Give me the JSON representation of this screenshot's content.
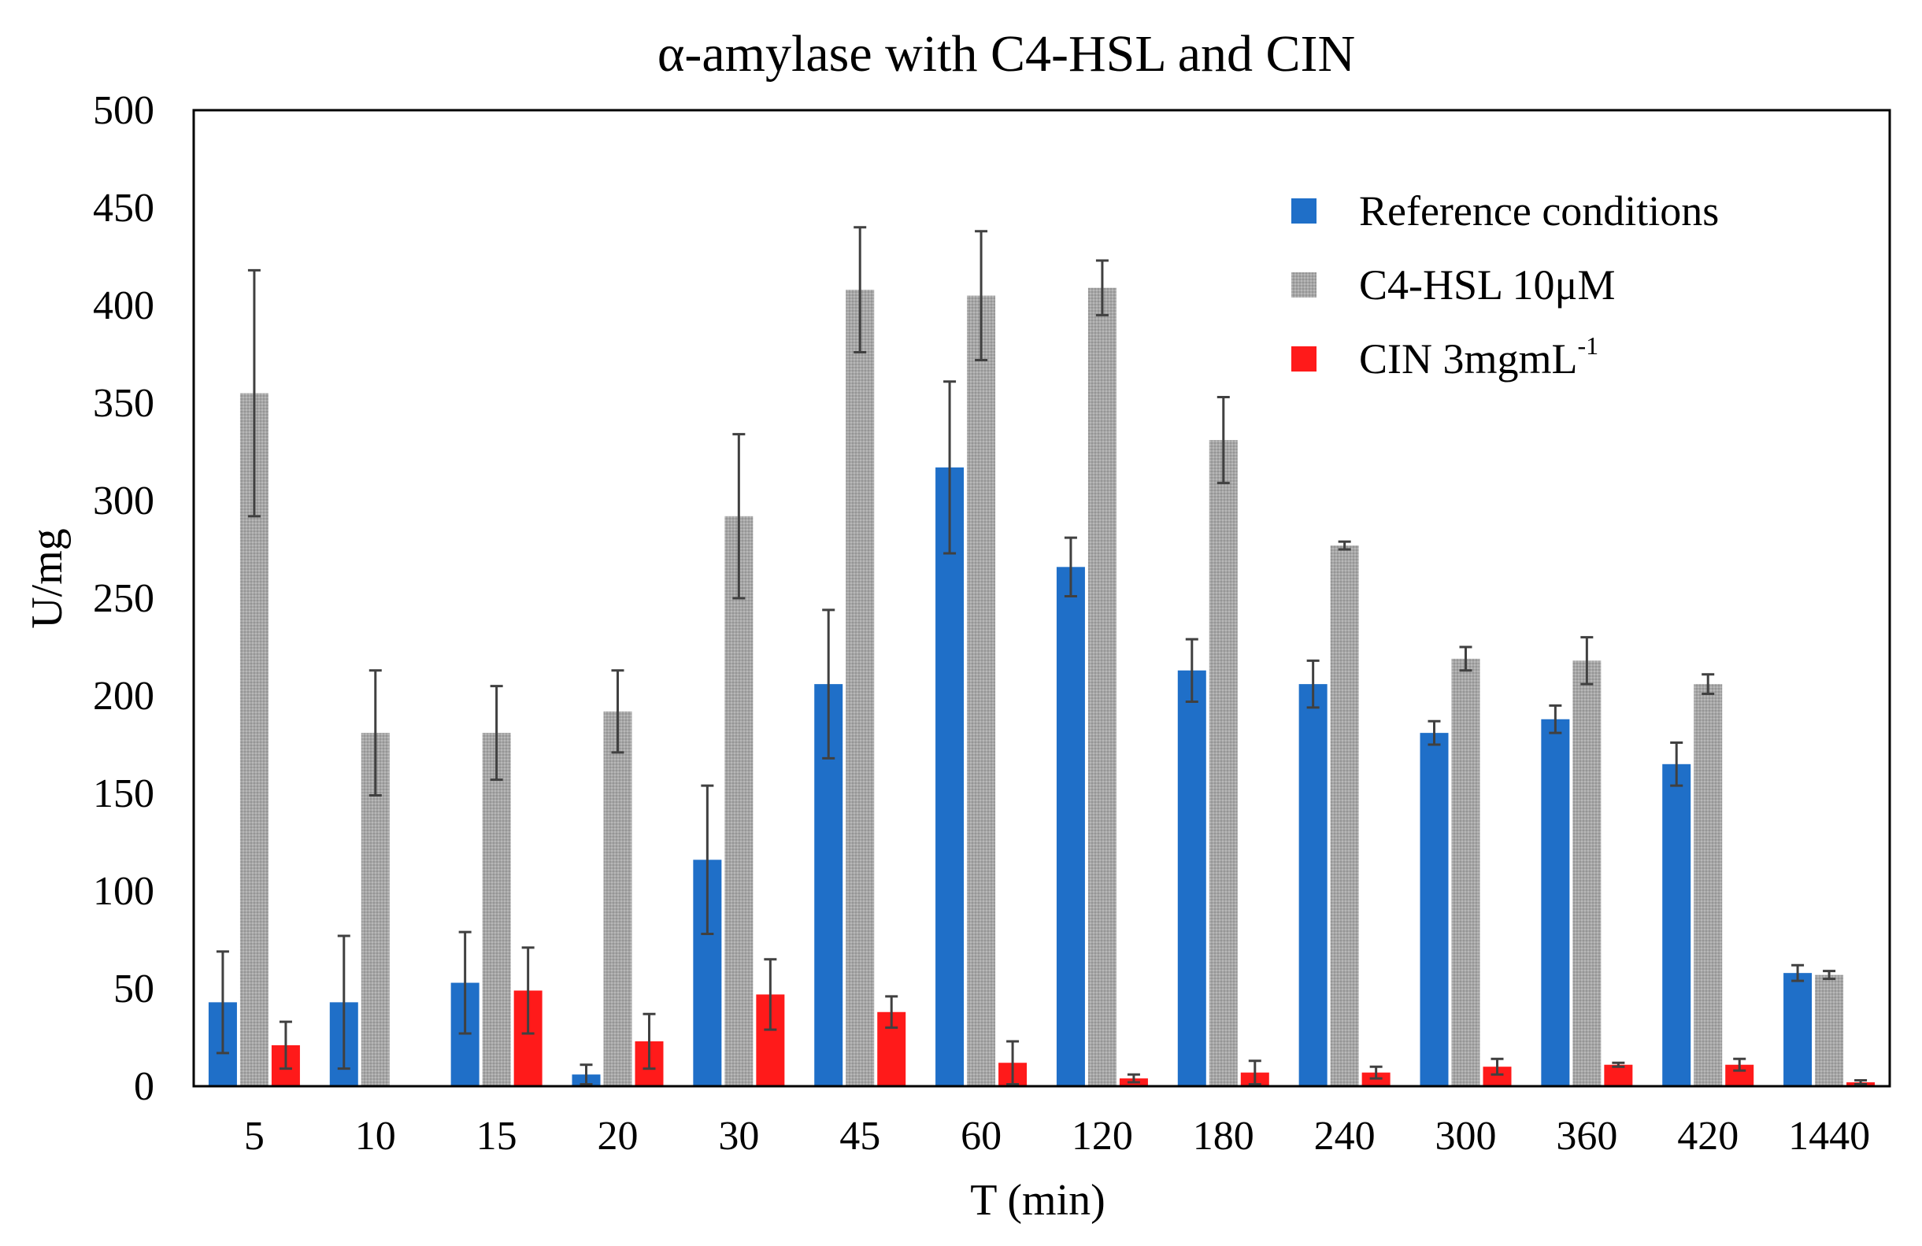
{
  "chart_data": {
    "type": "bar",
    "title": "α-amylase with C4-HSL and CIN",
    "xlabel": "T (min)",
    "ylabel": "U/mg",
    "ylim": [
      0,
      500
    ],
    "yticks": [
      0,
      50,
      100,
      150,
      200,
      250,
      300,
      350,
      400,
      450,
      500
    ],
    "categories": [
      "5",
      "10",
      "15",
      "20",
      "30",
      "45",
      "60",
      "120",
      "180",
      "240",
      "300",
      "360",
      "420",
      "1440"
    ],
    "legend_position": "top-right",
    "series": [
      {
        "name": "Reference conditions",
        "color": "#1F6FC8",
        "values": [
          43,
          43,
          53,
          6,
          116,
          206,
          317,
          266,
          213,
          206,
          181,
          188,
          165,
          58
        ],
        "errors": [
          26,
          34,
          26,
          5,
          38,
          38,
          44,
          15,
          16,
          12,
          6,
          7,
          11,
          4
        ]
      },
      {
        "name": "C4-HSL  10μM",
        "color": "#A6A6A6",
        "values": [
          355,
          181,
          181,
          192,
          292,
          408,
          405,
          409,
          331,
          277,
          219,
          218,
          206,
          57
        ],
        "errors": [
          63,
          32,
          24,
          21,
          42,
          32,
          33,
          14,
          22,
          2,
          6,
          12,
          5,
          2
        ]
      },
      {
        "name": "CIN  3mgmL",
        "name_superscript": "-1",
        "color": "#FF1A1A",
        "values": [
          21,
          0,
          49,
          23,
          47,
          38,
          12,
          4,
          7,
          7,
          10,
          11,
          11,
          2
        ],
        "errors": [
          12,
          0,
          22,
          14,
          18,
          8,
          11,
          2,
          6,
          3,
          4,
          1,
          3,
          1
        ]
      }
    ]
  }
}
